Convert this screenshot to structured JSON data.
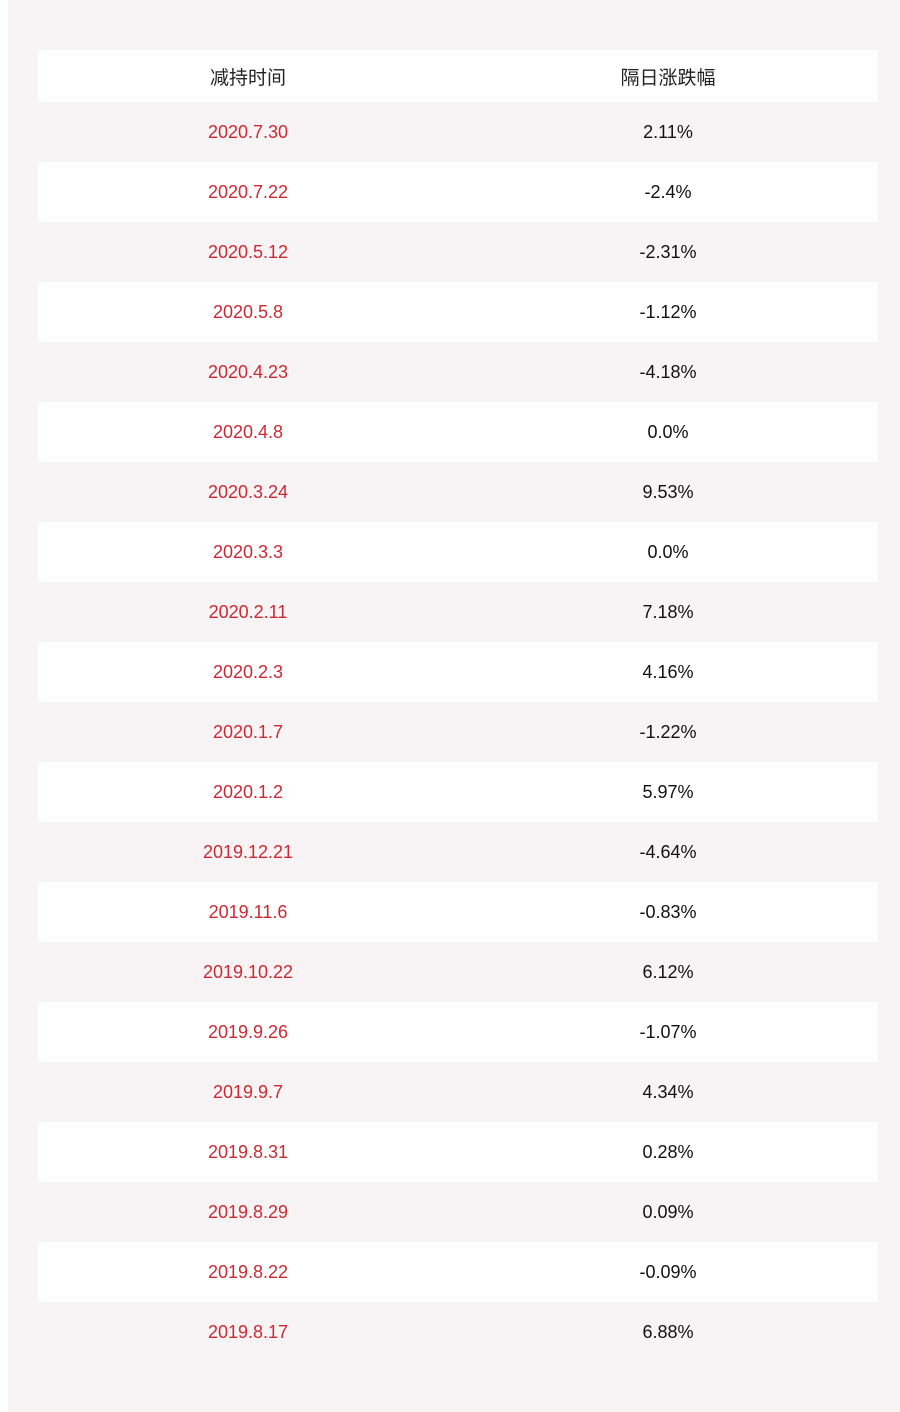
{
  "table": {
    "headers": [
      "减持时间",
      "隔日涨跌幅"
    ],
    "rows": [
      {
        "date": "2020.7.30",
        "change": "2.11%"
      },
      {
        "date": "2020.7.22",
        "change": "-2.4%"
      },
      {
        "date": "2020.5.12",
        "change": "-2.31%"
      },
      {
        "date": "2020.5.8",
        "change": "-1.12%"
      },
      {
        "date": "2020.4.23",
        "change": "-4.18%"
      },
      {
        "date": "2020.4.8",
        "change": "0.0%"
      },
      {
        "date": "2020.3.24",
        "change": "9.53%"
      },
      {
        "date": "2020.3.3",
        "change": "0.0%"
      },
      {
        "date": "2020.2.11",
        "change": "7.18%"
      },
      {
        "date": "2020.2.3",
        "change": "4.16%"
      },
      {
        "date": "2020.1.7",
        "change": "-1.22%"
      },
      {
        "date": "2020.1.2",
        "change": "5.97%"
      },
      {
        "date": "2019.12.21",
        "change": "-4.64%"
      },
      {
        "date": "2019.11.6",
        "change": "-0.83%"
      },
      {
        "date": "2019.10.22",
        "change": "6.12%"
      },
      {
        "date": "2019.9.26",
        "change": "-1.07%"
      },
      {
        "date": "2019.9.7",
        "change": "4.34%"
      },
      {
        "date": "2019.8.31",
        "change": "0.28%"
      },
      {
        "date": "2019.8.29",
        "change": "0.09%"
      },
      {
        "date": "2019.8.22",
        "change": "-0.09%"
      },
      {
        "date": "2019.8.17",
        "change": "6.88%"
      }
    ]
  },
  "colors": {
    "date_text": "#cc2a32",
    "value_text": "#111111",
    "stripe": "#f8f4f5",
    "row_white": "#ffffff"
  }
}
